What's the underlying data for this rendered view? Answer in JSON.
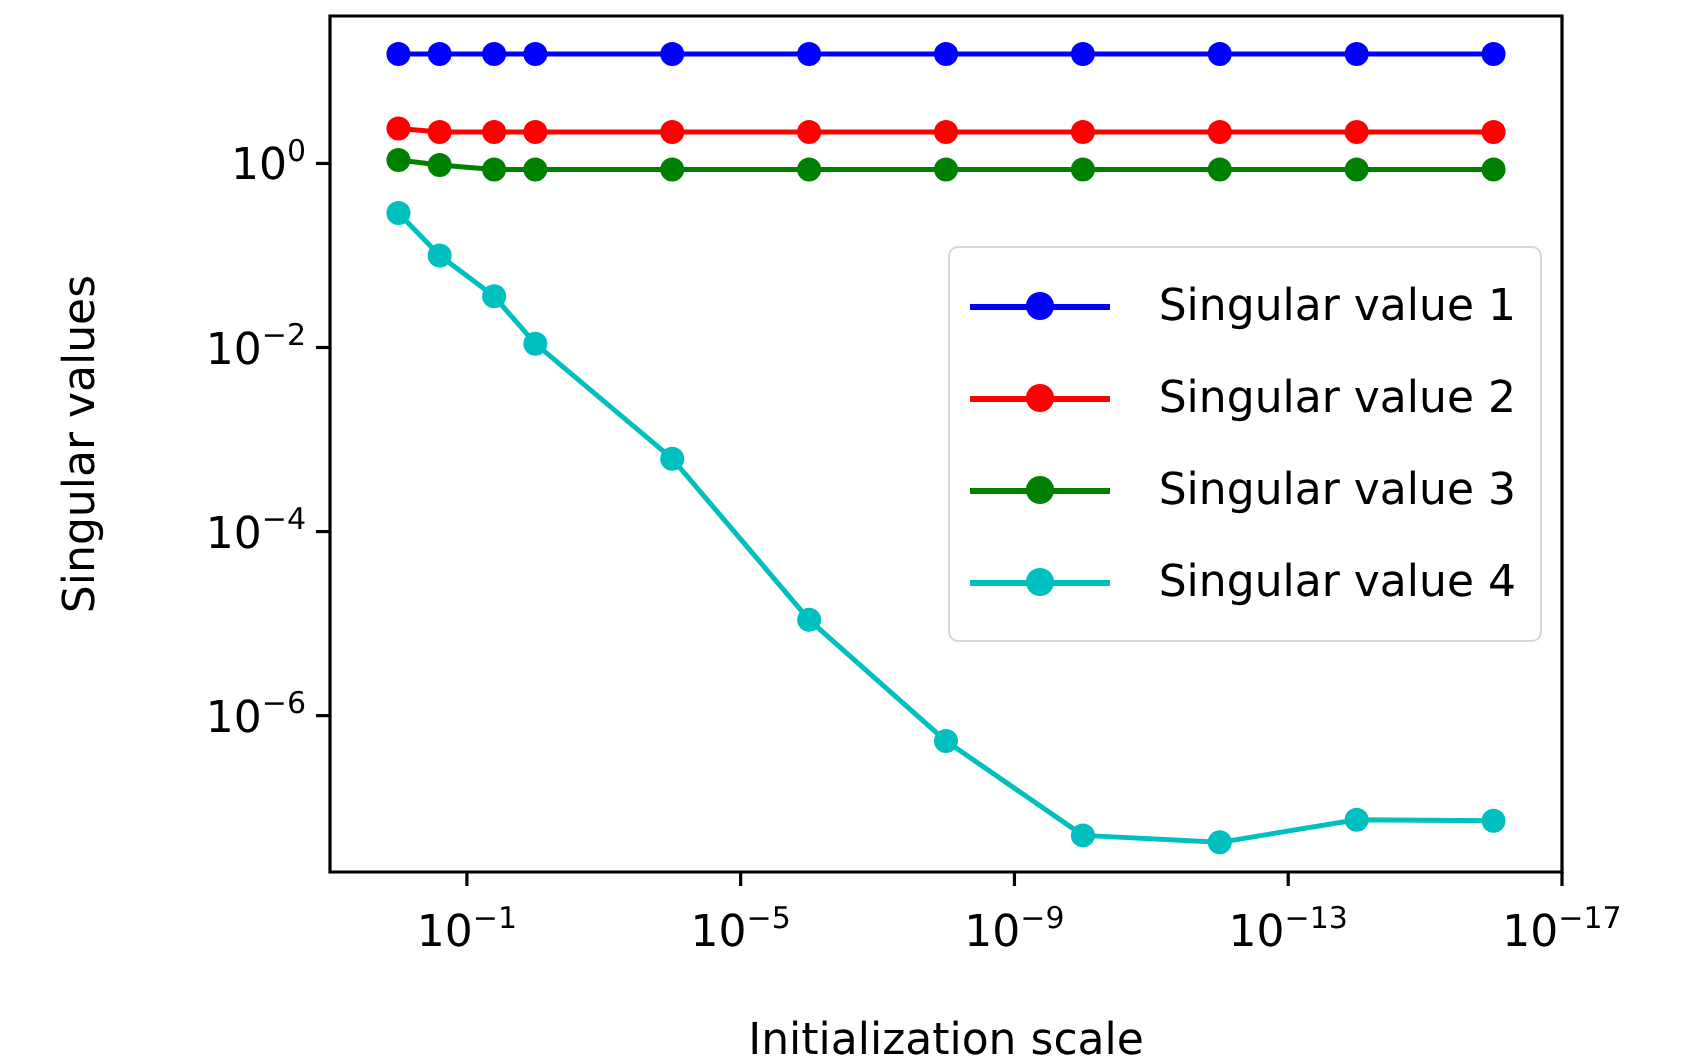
{
  "chart_data": {
    "type": "line",
    "xlabel": "Initialization scale",
    "ylabel": "Singular values",
    "log": "xy",
    "marker": "circle",
    "legend": "center right",
    "grid": false,
    "x": [
      1,
      0.25,
      0.04,
      0.01,
      0.0001,
      1e-06,
      1e-08,
      1e-10,
      1e-12,
      1e-14,
      1e-16
    ],
    "xlim": [
      10,
      1e-17
    ],
    "xticks": [
      {
        "value": 0.1,
        "label": "10$^{−1}$"
      },
      {
        "value": 1e-05,
        "label": "10$^{−5}$"
      },
      {
        "value": 1e-09,
        "label": "10$^{−9}$"
      },
      {
        "value": 1e-13,
        "label": "10$^{−13}$"
      },
      {
        "value": 1e-17,
        "label": "10$^{−17}$"
      }
    ],
    "ylim": [
      2e-08,
      40
    ],
    "yticks": [
      {
        "value": 1e-06,
        "label": "10$^{−6}$"
      },
      {
        "value": 0.0001,
        "label": "10$^{−4}$"
      },
      {
        "value": 0.01,
        "label": "10$^{−2}$"
      },
      {
        "value": 1,
        "label": "10$^{0}$"
      }
    ],
    "series": [
      {
        "name": "Singular value 1",
        "color": "#0000ff",
        "values": [
          15.5,
          15.5,
          15.5,
          15.5,
          15.5,
          15.5,
          15.5,
          15.5,
          15.5,
          15.5,
          15.5
        ]
      },
      {
        "name": "Singular value 2",
        "color": "#ff0000",
        "values": [
          2.4,
          2.2,
          2.2,
          2.2,
          2.2,
          2.2,
          2.2,
          2.2,
          2.2,
          2.2,
          2.2
        ]
      },
      {
        "name": "Singular value 3",
        "color": "#008000",
        "values": [
          1.09,
          0.96,
          0.86,
          0.86,
          0.86,
          0.86,
          0.86,
          0.86,
          0.86,
          0.86,
          0.86
        ]
      },
      {
        "name": "Singular value 4",
        "color": "#00bfbf",
        "values": [
          0.29,
          0.1,
          0.036,
          0.011,
          0.00062,
          1.1e-05,
          5.3e-07,
          5e-08,
          4.2e-08,
          7.4e-08,
          7.2e-08
        ]
      }
    ]
  }
}
